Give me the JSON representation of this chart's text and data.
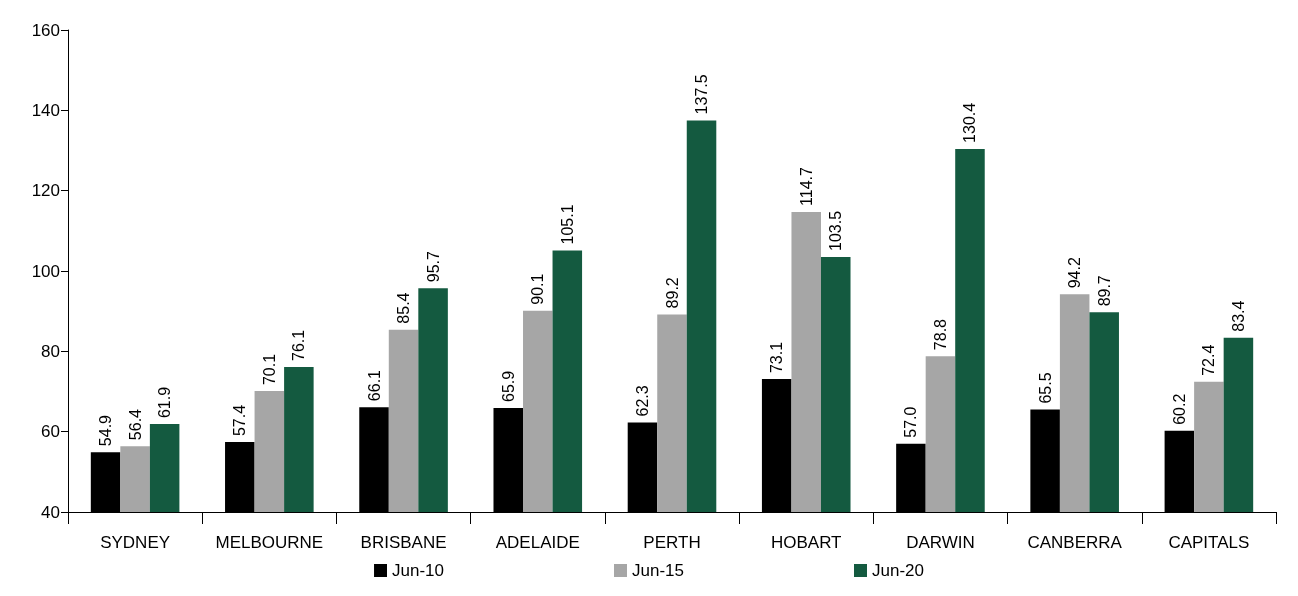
{
  "chart_data": {
    "type": "bar",
    "categories": [
      "SYDNEY",
      "MELBOURNE",
      "BRISBANE",
      "ADELAIDE",
      "PERTH",
      "HOBART",
      "DARWIN",
      "CANBERRA",
      "CAPITALS"
    ],
    "series": [
      {
        "name": "Jun-10",
        "color": "#000000",
        "values": [
          54.9,
          57.4,
          66.1,
          65.9,
          62.3,
          73.1,
          57.0,
          65.5,
          60.2
        ],
        "value_labels": [
          "54.9",
          "57.4",
          "66.1",
          "65.9",
          "62.3",
          "73.1",
          "57.0",
          "65.5",
          "60.2"
        ]
      },
      {
        "name": "Jun-15",
        "color": "#a6a6a6",
        "values": [
          56.4,
          70.1,
          85.4,
          90.1,
          89.2,
          114.7,
          78.8,
          94.2,
          72.4
        ],
        "value_labels": [
          "56.4",
          "70.1",
          "85.4",
          "90.1",
          "89.2",
          "114.7",
          "78.8",
          "94.2",
          "72.4"
        ]
      },
      {
        "name": "Jun-20",
        "color": "#145a40",
        "values": [
          61.9,
          76.1,
          95.7,
          105.1,
          137.5,
          103.5,
          130.4,
          89.7,
          83.4
        ],
        "value_labels": [
          "61.9",
          "76.1",
          "95.7",
          "105.1",
          "137.5",
          "103.5",
          "130.4",
          "89.7",
          "83.4"
        ]
      }
    ],
    "ylim": [
      40,
      160
    ],
    "yticks": [
      40,
      60,
      80,
      100,
      120,
      140,
      160
    ],
    "grid": false,
    "legend": "bottom"
  }
}
